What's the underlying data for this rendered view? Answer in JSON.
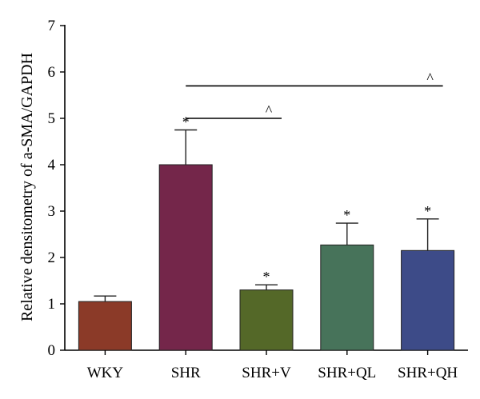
{
  "chart_data": {
    "type": "bar",
    "title": "",
    "xlabel": "",
    "ylabel": "Relative densitometry of a-SMA/GAPDH",
    "ylim": [
      0,
      7
    ],
    "yticks": [
      "0",
      "1",
      "2",
      "3",
      "4",
      "5",
      "6",
      "7"
    ],
    "categories": [
      "WKY",
      "SHR",
      "SHR+V",
      "SHR+QL",
      "SHR+QH"
    ],
    "values": [
      1.05,
      4.0,
      1.3,
      2.27,
      2.15
    ],
    "errors": [
      0.12,
      0.75,
      0.11,
      0.47,
      0.68
    ],
    "significance": [
      "",
      "*",
      "*",
      "*",
      "*"
    ],
    "bar_colors": [
      "#8B3A28",
      "#74264A",
      "#546828",
      "#47735A",
      "#3D4B88"
    ],
    "comparisons": [
      {
        "from": "SHR",
        "to": "SHR+V",
        "y": 5.0,
        "label": "^"
      },
      {
        "from": "SHR",
        "to": "SHR+QH",
        "y": 5.7,
        "label": "^"
      }
    ]
  }
}
